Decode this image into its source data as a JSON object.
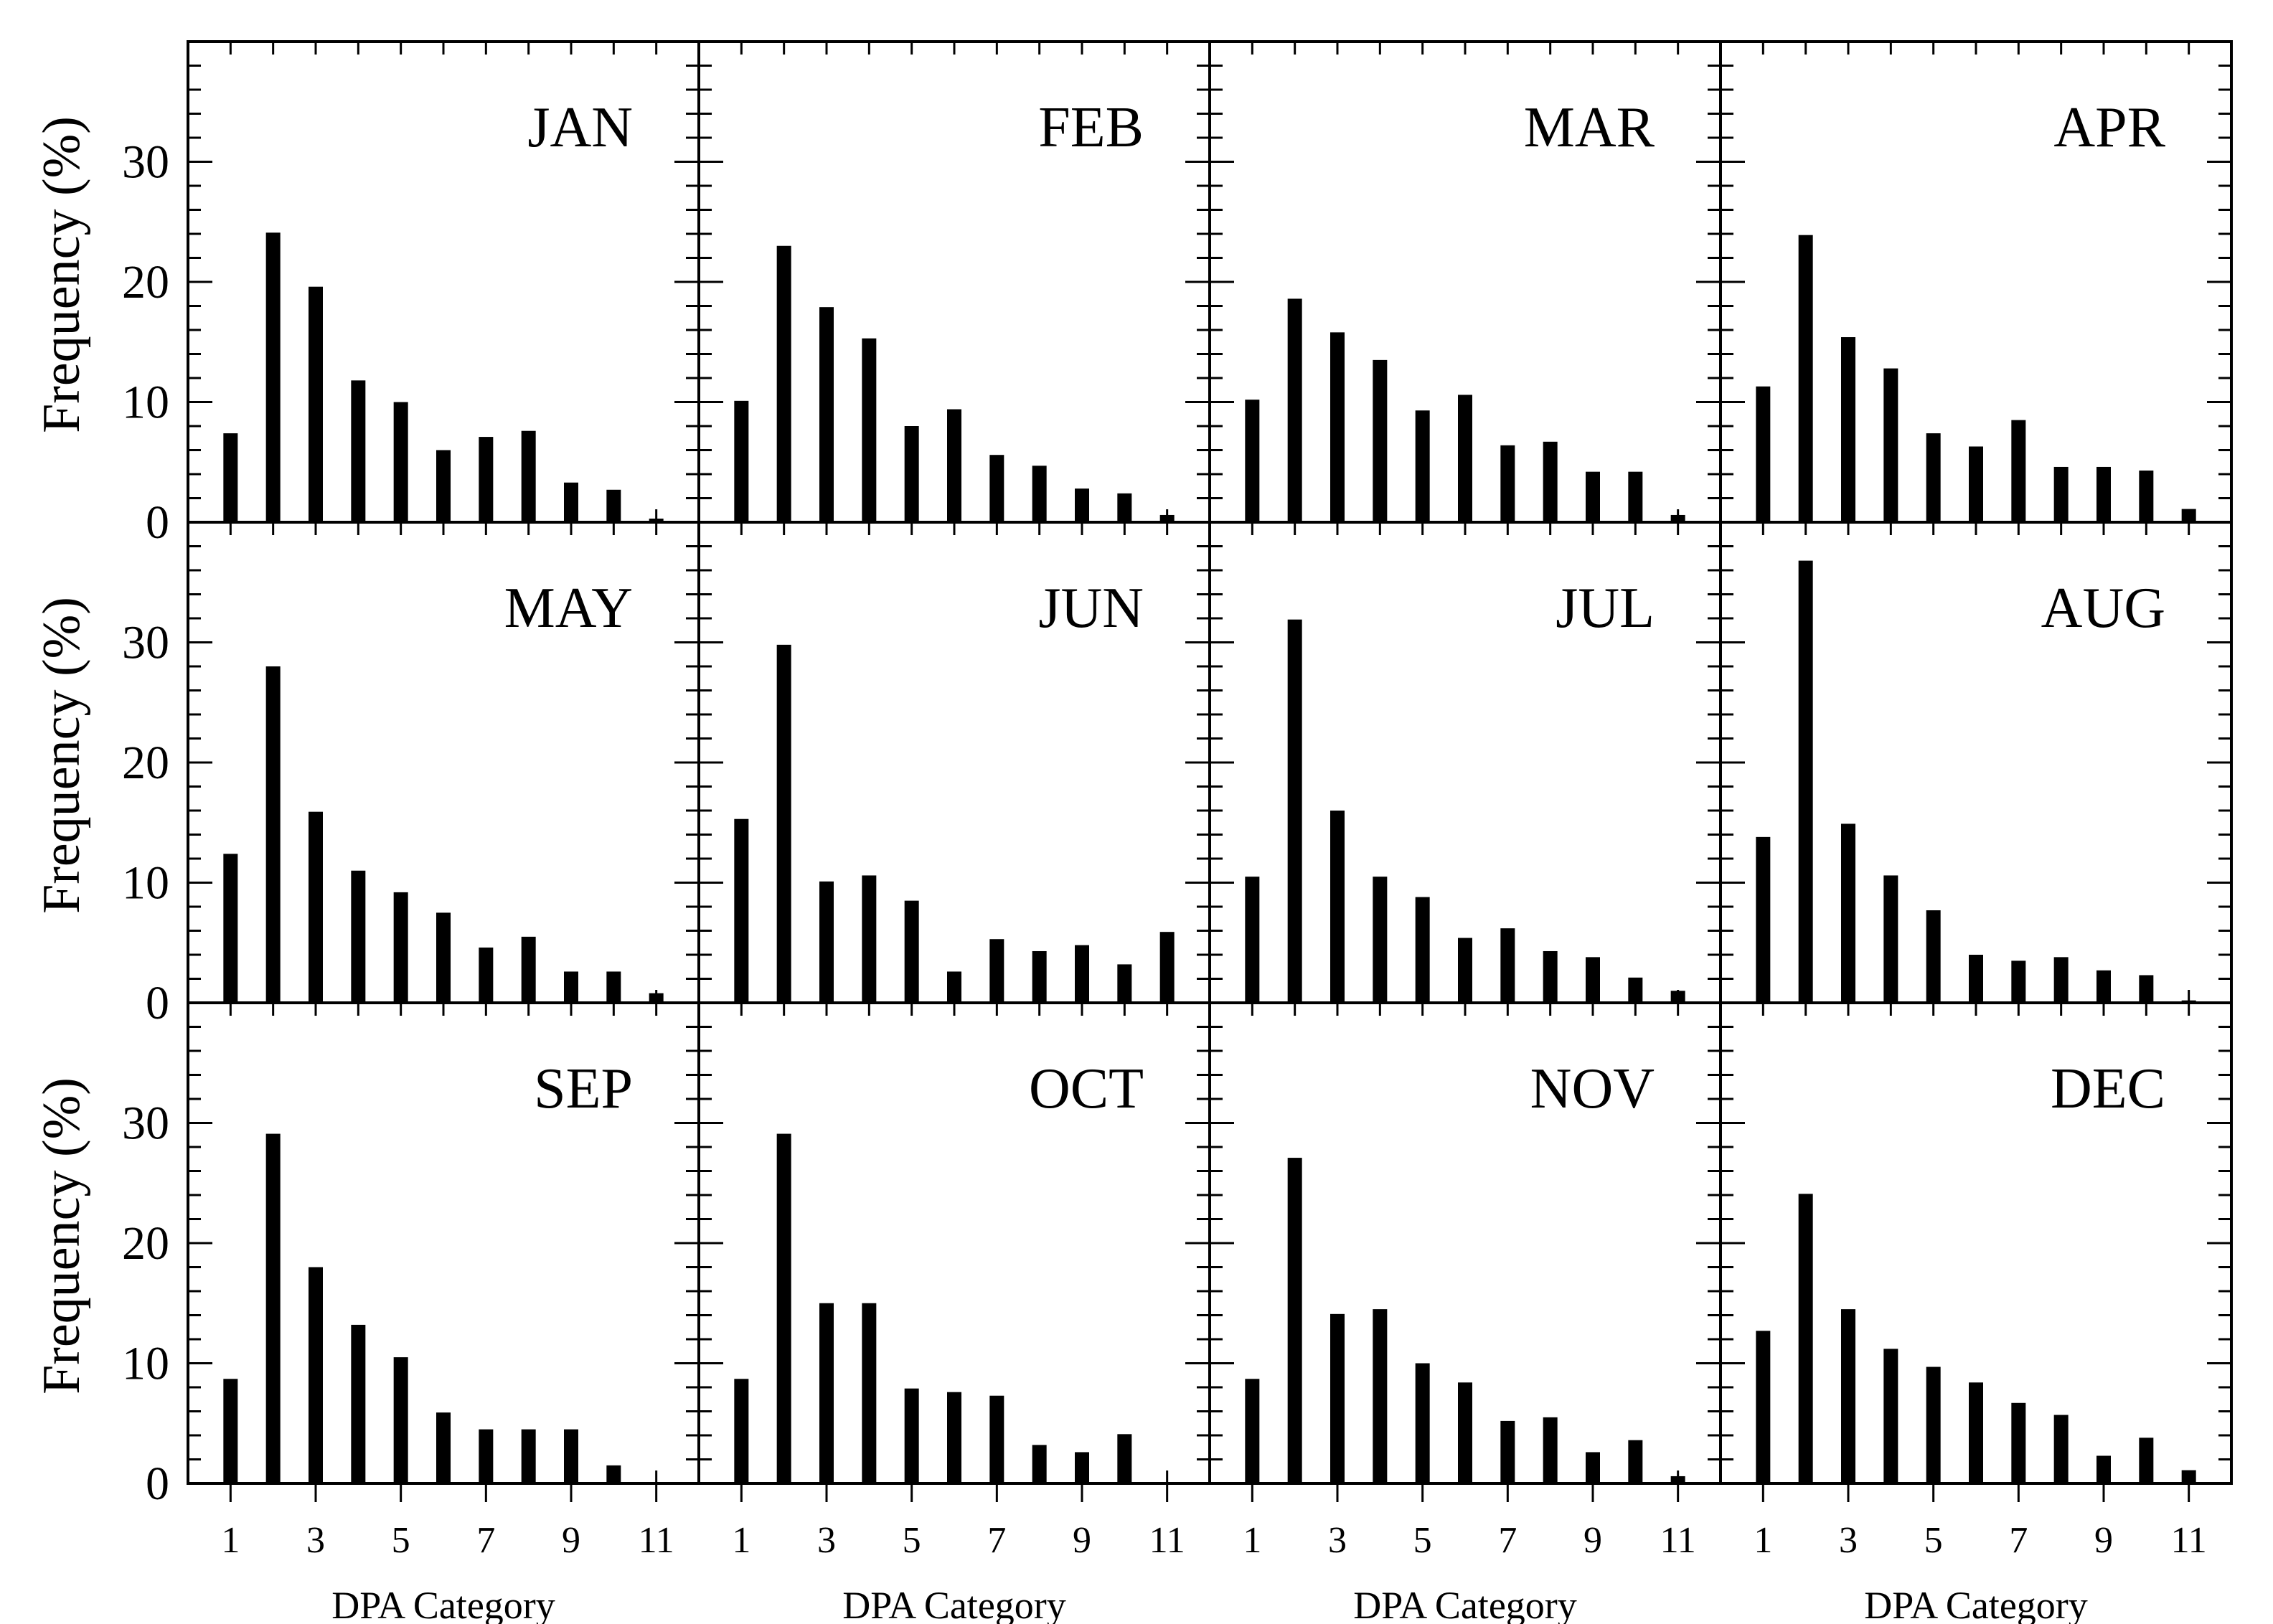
{
  "chart_data": {
    "type": "bar",
    "layout": "small-multiples 3x4",
    "xlabel": "DPA Category",
    "ylabel": "Frequency (%)",
    "categories": [
      1,
      2,
      3,
      4,
      5,
      6,
      7,
      8,
      9,
      10,
      11
    ],
    "xtick_labels": [
      "1",
      "3",
      "5",
      "7",
      "9",
      "11"
    ],
    "ylim": [
      0,
      40
    ],
    "ytick_labels": [
      "0",
      "10",
      "20",
      "30"
    ],
    "bar_color": "#000000",
    "panels": [
      {
        "name": "JAN",
        "values": [
          7.4,
          24.1,
          19.6,
          11.8,
          10.0,
          6.0,
          7.1,
          7.6,
          3.3,
          2.7,
          0.3
        ]
      },
      {
        "name": "FEB",
        "values": [
          10.1,
          23.0,
          17.9,
          15.3,
          8.0,
          9.4,
          5.6,
          4.7,
          2.8,
          2.4,
          0.6
        ]
      },
      {
        "name": "MAR",
        "values": [
          10.2,
          18.6,
          15.8,
          13.5,
          9.3,
          10.6,
          6.4,
          6.7,
          4.2,
          4.2,
          0.6
        ]
      },
      {
        "name": "APR",
        "values": [
          11.3,
          23.9,
          15.4,
          12.8,
          7.4,
          6.3,
          8.5,
          4.6,
          4.6,
          4.3,
          1.1
        ]
      },
      {
        "name": "MAY",
        "values": [
          12.4,
          28.0,
          15.9,
          11.0,
          9.2,
          7.5,
          4.6,
          5.5,
          2.6,
          2.6,
          0.8
        ]
      },
      {
        "name": "JUN",
        "values": [
          15.3,
          29.8,
          10.1,
          10.6,
          8.5,
          2.6,
          5.3,
          4.3,
          4.8,
          3.2,
          5.9
        ]
      },
      {
        "name": "JUL",
        "values": [
          10.5,
          31.9,
          16.0,
          10.5,
          8.8,
          5.4,
          6.2,
          4.3,
          3.8,
          2.1,
          1.0
        ]
      },
      {
        "name": "AUG",
        "values": [
          13.8,
          36.8,
          14.9,
          10.6,
          7.7,
          4.0,
          3.5,
          3.8,
          2.7,
          2.3,
          0.2
        ]
      },
      {
        "name": "SEP",
        "values": [
          8.7,
          29.1,
          18.0,
          13.2,
          10.5,
          5.9,
          4.5,
          4.5,
          4.5,
          1.5,
          0.0
        ]
      },
      {
        "name": "OCT",
        "values": [
          8.7,
          29.1,
          15.0,
          15.0,
          7.9,
          7.6,
          7.3,
          3.2,
          2.6,
          4.1,
          0.0
        ]
      },
      {
        "name": "NOV",
        "values": [
          8.7,
          27.1,
          14.1,
          14.5,
          10.0,
          8.4,
          5.2,
          5.5,
          2.6,
          3.6,
          0.6
        ]
      },
      {
        "name": "DEC",
        "values": [
          12.7,
          24.1,
          14.5,
          11.2,
          9.7,
          8.4,
          6.7,
          5.7,
          2.3,
          3.8,
          1.1
        ]
      }
    ]
  }
}
